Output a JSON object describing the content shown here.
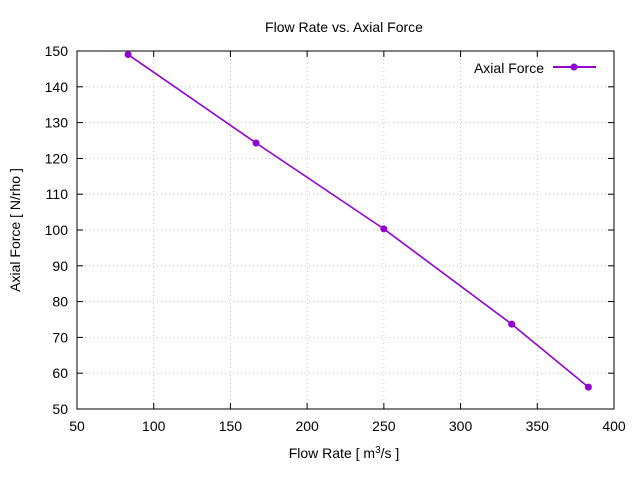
{
  "chart_data": {
    "type": "line",
    "title": "Flow Rate vs. Axial Force",
    "xlabel": {
      "prefix": "Flow Rate [ m",
      "sup": "3",
      "suffix": "/s ]"
    },
    "ylabel": "Axial Force [ N/rho ]",
    "xlim": [
      50,
      400
    ],
    "ylim": [
      50,
      150
    ],
    "xticks": [
      50,
      100,
      150,
      200,
      250,
      300,
      350,
      400
    ],
    "yticks": [
      50,
      60,
      70,
      80,
      90,
      100,
      110,
      120,
      130,
      140,
      150
    ],
    "grid": true,
    "legend_position": "top-right",
    "series": [
      {
        "name": "Axial Force",
        "color": "#9400d3",
        "marker": "circle",
        "x": [
          83.3,
          166.7,
          250,
          333.3,
          383.3
        ],
        "y": [
          149,
          124.3,
          100.3,
          73.7,
          56.1
        ]
      }
    ]
  }
}
